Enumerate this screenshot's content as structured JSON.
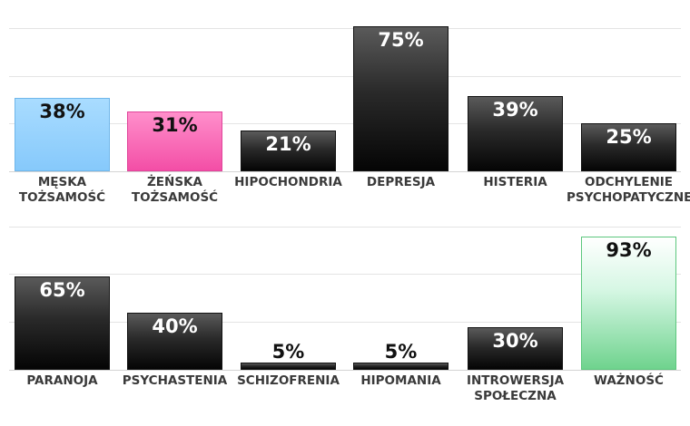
{
  "chart_data": [
    {
      "type": "bar",
      "categories": [
        "MĘSKA\nTOŻSAMOŚĆ",
        "ŻEŃSKA\nTOŻSAMOŚĆ",
        "HIPOCHONDRIA",
        "DEPRESJA",
        "HISTERIA",
        "ODCHYLENIE\nPSYCHOPATYCZNE"
      ],
      "values": [
        38,
        31,
        21,
        75,
        39,
        25
      ],
      "value_labels": [
        "38%",
        "31%",
        "21%",
        "75%",
        "39%",
        "25%"
      ],
      "styles": [
        "blue",
        "pink",
        "dark",
        "dark",
        "dark",
        "dark"
      ],
      "ylim": [
        0,
        100
      ],
      "grid": true
    },
    {
      "type": "bar",
      "categories": [
        "PARANOJA",
        "PSYCHASTENIA",
        "SCHIZOFRENIA",
        "HIPOMANIA",
        "INTROWERSJA\nSPOŁECZNA",
        "WAŻNOŚĆ"
      ],
      "values": [
        65,
        40,
        5,
        5,
        30,
        93
      ],
      "value_labels": [
        "65%",
        "40%",
        "5%",
        "5%",
        "30%",
        "93%"
      ],
      "styles": [
        "dark",
        "dark",
        "dark",
        "dark",
        "dark",
        "green"
      ],
      "ylim": [
        0,
        100
      ],
      "grid": true
    }
  ]
}
